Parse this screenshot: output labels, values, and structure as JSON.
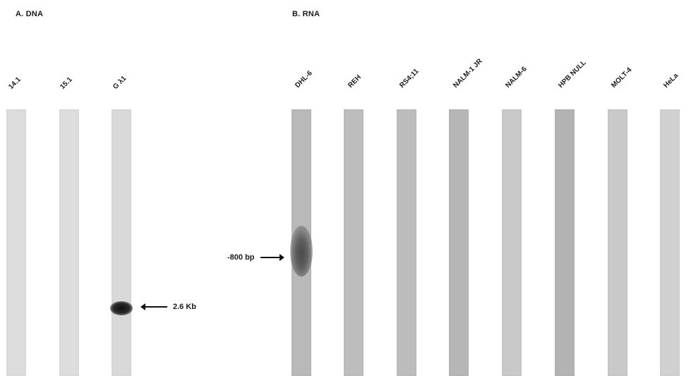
{
  "panels": {
    "dna": {
      "title": "A. DNA",
      "lanes": [
        {
          "label": "14.1",
          "color": "#dcdcdc",
          "band": null
        },
        {
          "label": "15.1",
          "color": "#dddddd",
          "band": null
        },
        {
          "label": "G λ1",
          "color": "#d9d9d9",
          "band": "strong"
        }
      ],
      "annotation": "2.6 Kb"
    },
    "rna": {
      "title": "B. RNA",
      "lanes": [
        {
          "label": "DHL-6",
          "color": "#b9b9b9",
          "band": "diffuse"
        },
        {
          "label": "REH",
          "color": "#bdbdbd",
          "band": null
        },
        {
          "label": "RS4;11",
          "color": "#bcbcbc",
          "band": null
        },
        {
          "label": "NALM-1 JR",
          "color": "#b6b6b6",
          "band": null
        },
        {
          "label": "NALM-6",
          "color": "#c8c8c8",
          "band": null
        },
        {
          "label": "HPB NULL",
          "color": "#b3b3b3",
          "band": null
        },
        {
          "label": "MOLT-4",
          "color": "#c9c9c9",
          "band": null
        },
        {
          "label": "HeLa",
          "color": "#d0d0d0",
          "band": null
        }
      ],
      "annotation": "-800 bp"
    }
  }
}
